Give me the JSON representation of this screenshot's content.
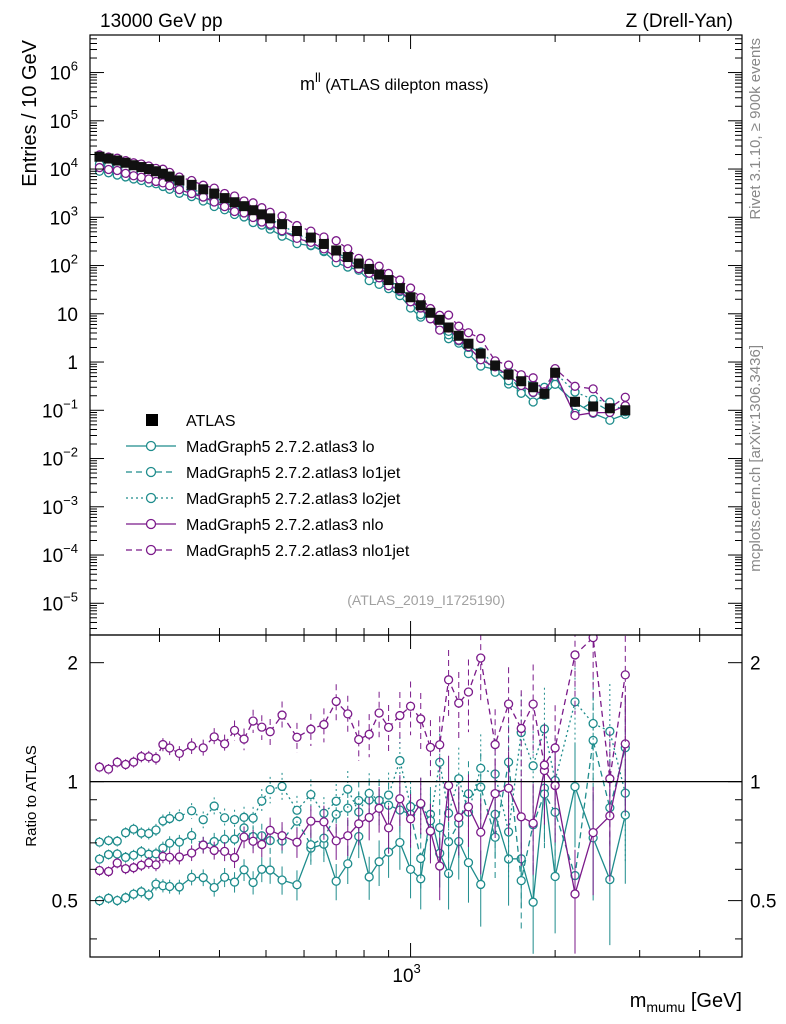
{
  "header": {
    "left": "13000 GeV pp",
    "right": "Z (Drell-Yan)"
  },
  "side_labels": {
    "rivet": "Rivet 3.1.10, ≥ 900k events",
    "mcplots": "mcplots.cern.ch [arXiv:1306.3436]"
  },
  "chart_data": [
    {
      "type": "line",
      "panel": "main",
      "title_main": "m",
      "title_sup": "ll",
      "title_rest": " (ATLAS dilepton mass)",
      "ylabel": "Entries / 10 GeV",
      "xscale": "log",
      "yscale": "log",
      "xlim": [
        215,
        4900
      ],
      "ylim": [
        2.2e-06,
        6000000.0
      ],
      "y_ticks_major": [
        {
          "value": 1000000.0,
          "base": "10",
          "exp": "6"
        },
        {
          "value": 100000.0,
          "base": "10",
          "exp": "5"
        },
        {
          "value": 10000.0,
          "base": "10",
          "exp": "4"
        },
        {
          "value": 1000.0,
          "base": "10",
          "exp": "3"
        },
        {
          "value": 100.0,
          "base": "10",
          "exp": "2"
        },
        {
          "value": 10,
          "base": "10",
          "exp": ""
        },
        {
          "value": 1,
          "base": "1",
          "exp": ""
        },
        {
          "value": 0.1,
          "base": "10",
          "exp": "−1"
        },
        {
          "value": 0.01,
          "base": "10",
          "exp": "−2"
        },
        {
          "value": 0.001,
          "base": "10",
          "exp": "−3"
        },
        {
          "value": 0.0001,
          "base": "10",
          "exp": "−4"
        },
        {
          "value": 1e-05,
          "base": "10",
          "exp": "−5"
        }
      ],
      "watermark": "(ATLAS_2019_I1725190)",
      "legend_placement": "lower-left",
      "legend": [
        {
          "label": "ATLAS",
          "style": "marker",
          "color": "#000000"
        },
        {
          "label": "MadGraph5 2.7.2.atlas3 lo",
          "style": "solid",
          "color": "#1e8c8c"
        },
        {
          "label": "MadGraph5 2.7.2.atlas3 lo1jet",
          "style": "dashed",
          "color": "#1e8c8c"
        },
        {
          "label": "MadGraph5 2.7.2.atlas3 lo2jet",
          "style": "dotted",
          "color": "#1e8c8c"
        },
        {
          "label": "MadGraph5 2.7.2.atlas3 nlo",
          "style": "solid",
          "color": "#7b1a8a"
        },
        {
          "label": "MadGraph5 2.7.2.atlas3 nlo1jet",
          "style": "dashed",
          "color": "#7b1a8a"
        }
      ],
      "data_points": {
        "x": [
          225,
          235,
          245,
          255,
          265,
          275,
          285,
          295,
          305,
          315,
          330,
          350,
          370,
          390,
          410,
          430,
          450,
          470,
          490,
          510,
          540,
          580,
          620,
          660,
          700,
          740,
          780,
          820,
          860,
          900,
          950,
          1000,
          1050,
          1100,
          1150,
          1200,
          1260,
          1320,
          1400,
          1500,
          1600,
          1700,
          1800,
          1900,
          2000,
          2200,
          2400,
          2600,
          2800
        ],
        "y": [
          18000,
          16500,
          15000,
          13500,
          12000,
          11000,
          10000,
          9000,
          8000,
          7000,
          5800,
          4700,
          3800,
          3100,
          2500,
          2050,
          1700,
          1400,
          1150,
          950,
          720,
          520,
          380,
          280,
          205,
          150,
          110,
          85,
          65,
          50,
          34,
          22,
          15,
          10.5,
          7.5,
          5.2,
          3.5,
          2.4,
          1.5,
          0.85,
          0.55,
          0.4,
          0.3,
          0.22,
          0.6,
          0.15,
          0.12,
          0.11,
          0.1
        ]
      },
      "series_shape": {
        "lo": {
          "factor_low": 0.5,
          "factor_high": 0.75,
          "color": "#1e8c8c"
        },
        "lo1jet": {
          "factor_low": 0.64,
          "factor_high": 0.9,
          "color": "#1e8c8c"
        },
        "lo2jet": {
          "factor_low": 0.7,
          "factor_high": 1.2,
          "color": "#1e8c8c"
        },
        "nlo": {
          "factor_low": 0.6,
          "factor_high": 0.85,
          "color": "#7b1a8a"
        },
        "nlo1jet": {
          "factor_low": 1.08,
          "factor_high": 1.8,
          "color": "#7b1a8a"
        }
      }
    },
    {
      "type": "line",
      "panel": "ratio",
      "ylabel": "Ratio to ATLAS",
      "xlabel_main": "m",
      "xlabel_sub": "mumu",
      "xlabel_unit": " [GeV]",
      "xscale": "log",
      "yscale": "log",
      "xlim": [
        215,
        4900
      ],
      "ylim": [
        0.36,
        2.35
      ],
      "x_ticks_major": [
        {
          "value": 1000,
          "base": "10",
          "exp": "3"
        }
      ],
      "y_ticks_labeled": [
        {
          "value": 2,
          "label": "2"
        },
        {
          "value": 1,
          "label": "1"
        },
        {
          "value": 0.5,
          "label": "0.5"
        }
      ],
      "reference_line": 1.0
    }
  ]
}
